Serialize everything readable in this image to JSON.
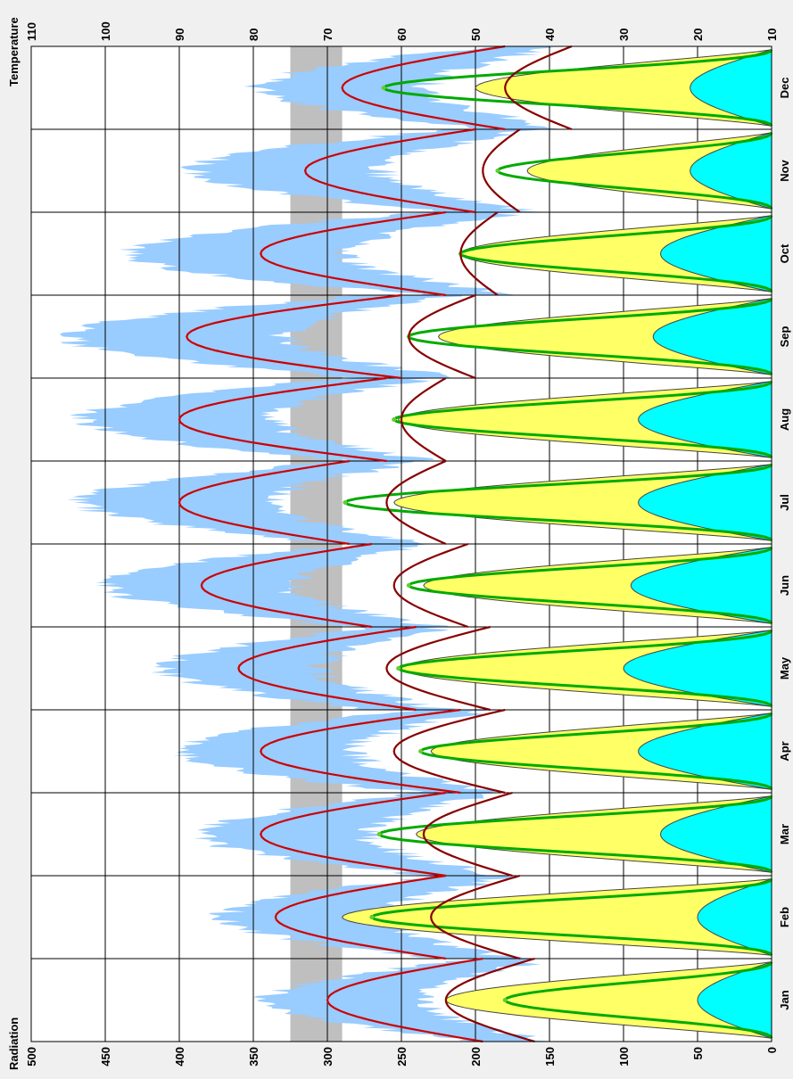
{
  "chart_data": {
    "type": "line",
    "orientation": "rotated-90-clockwise",
    "axes": {
      "radiation": {
        "title": "Radiation",
        "range": [
          0,
          500
        ],
        "ticks": [
          0,
          50,
          100,
          150,
          200,
          250,
          300,
          350,
          400,
          450,
          500
        ]
      },
      "temperature": {
        "title": "Temperature",
        "range": [
          10,
          110
        ],
        "ticks": [
          10,
          20,
          30,
          40,
          50,
          60,
          70,
          80,
          90,
          100,
          110
        ]
      }
    },
    "months": [
      "Jan",
      "Feb",
      "Mar",
      "Apr",
      "May",
      "Jun",
      "Jul",
      "Aug",
      "Sep",
      "Oct",
      "Nov",
      "Dec"
    ],
    "grid": true,
    "comfort_band_temperature": [
      68,
      75
    ],
    "colors": {
      "dry_bulb_range": "#99ccff",
      "dry_bulb_mean": "#cc0000",
      "wet_bulb_or_dewpoint": "#880000",
      "global_radiation": "#ffff66",
      "direct_radiation_outline": "#00aa00",
      "diffuse_radiation": "#00ffff",
      "comfort_band": "#bfbfbf"
    },
    "series": [
      {
        "kind": "temperature-range",
        "axis": "temperature",
        "low_by_month": [
          40,
          45,
          46,
          47,
          54,
          55,
          57,
          56,
          52,
          44,
          42,
          38
        ],
        "high_by_month": [
          78,
          84,
          87,
          90,
          92,
          100,
          103,
          103,
          105,
          97,
          88,
          79
        ]
      },
      {
        "kind": "temperature-line",
        "axis": "temperature",
        "mean_peak_by_month": [
          70,
          77,
          79,
          79,
          82,
          87,
          90,
          90,
          89,
          79,
          73,
          68
        ],
        "mean_low_by_month": [
          49,
          54,
          54,
          52,
          58,
          64,
          67,
          62,
          60,
          54,
          50,
          46
        ]
      },
      {
        "kind": "temperature-line",
        "axis": "temperature",
        "peak_by_month": [
          54,
          56,
          57,
          61,
          62,
          61,
          62,
          60,
          59,
          52,
          49,
          46
        ],
        "low_by_month": [
          42,
          44,
          45,
          46,
          48,
          51,
          54,
          54,
          50,
          47,
          44,
          37
        ]
      },
      {
        "kind": "radiation-area",
        "axis": "radiation",
        "global_peak_by_month": [
          220,
          290,
          240,
          230,
          250,
          235,
          255,
          252,
          225,
          210,
          165,
          200
        ],
        "direct_peak_by_month": [
          180,
          270,
          265,
          237,
          252,
          245,
          288,
          255,
          245,
          210,
          185,
          262
        ],
        "diffuse_peak_by_month": [
          50,
          50,
          75,
          90,
          100,
          95,
          90,
          90,
          80,
          75,
          55,
          55
        ]
      }
    ]
  }
}
